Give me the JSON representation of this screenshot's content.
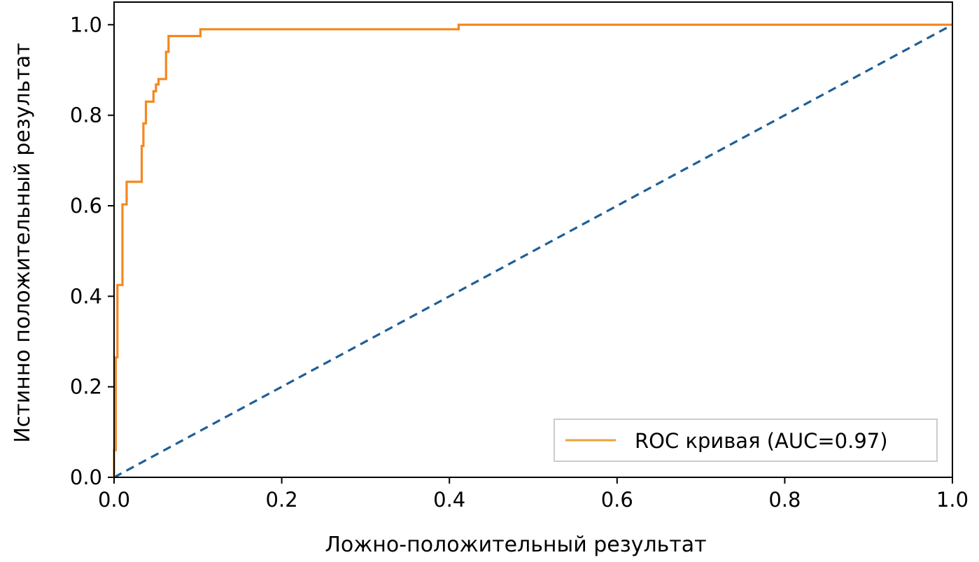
{
  "chart_data": {
    "type": "line",
    "xlabel": "Ложно-положительный результат",
    "ylabel": "Истинно положительный результат",
    "xlim": [
      0.0,
      1.0
    ],
    "ylim": [
      0.0,
      1.05
    ],
    "xticks": [
      0.0,
      0.2,
      0.4,
      0.6,
      0.8,
      1.0
    ],
    "yticks": [
      0.0,
      0.2,
      0.4,
      0.6,
      0.8,
      1.0
    ],
    "xtick_labels": [
      "0.0",
      "0.2",
      "0.4",
      "0.6",
      "0.8",
      "1.0"
    ],
    "ytick_labels": [
      "0.0",
      "0.2",
      "0.4",
      "0.6",
      "0.8",
      "1.0"
    ],
    "grid": false,
    "legend_position": "lower-right",
    "series": [
      {
        "name": "ROC кривая (AUC=0.97)",
        "color": "#f5871f",
        "style": "solid",
        "x": [
          0.0,
          0.0,
          0.002,
          0.002,
          0.004,
          0.004,
          0.01,
          0.01,
          0.015,
          0.015,
          0.033,
          0.033,
          0.035,
          0.035,
          0.038,
          0.038,
          0.047,
          0.047,
          0.05,
          0.05,
          0.053,
          0.053,
          0.062,
          0.062,
          0.065,
          0.065,
          0.103,
          0.103,
          0.411,
          0.411,
          1.0
        ],
        "y": [
          0.0,
          0.06,
          0.06,
          0.265,
          0.265,
          0.425,
          0.425,
          0.603,
          0.603,
          0.653,
          0.653,
          0.732,
          0.732,
          0.782,
          0.782,
          0.83,
          0.83,
          0.853,
          0.853,
          0.868,
          0.868,
          0.88,
          0.88,
          0.94,
          0.94,
          0.975,
          0.975,
          0.99,
          0.99,
          1.0,
          1.0
        ]
      },
      {
        "name": "",
        "color": "#1f5f96",
        "style": "dashed",
        "x": [
          0.0,
          1.0
        ],
        "y": [
          0.0,
          1.0
        ]
      }
    ],
    "legend": [
      {
        "label": "ROC кривая (AUC=0.97)",
        "color": "#e8a33c"
      }
    ]
  }
}
